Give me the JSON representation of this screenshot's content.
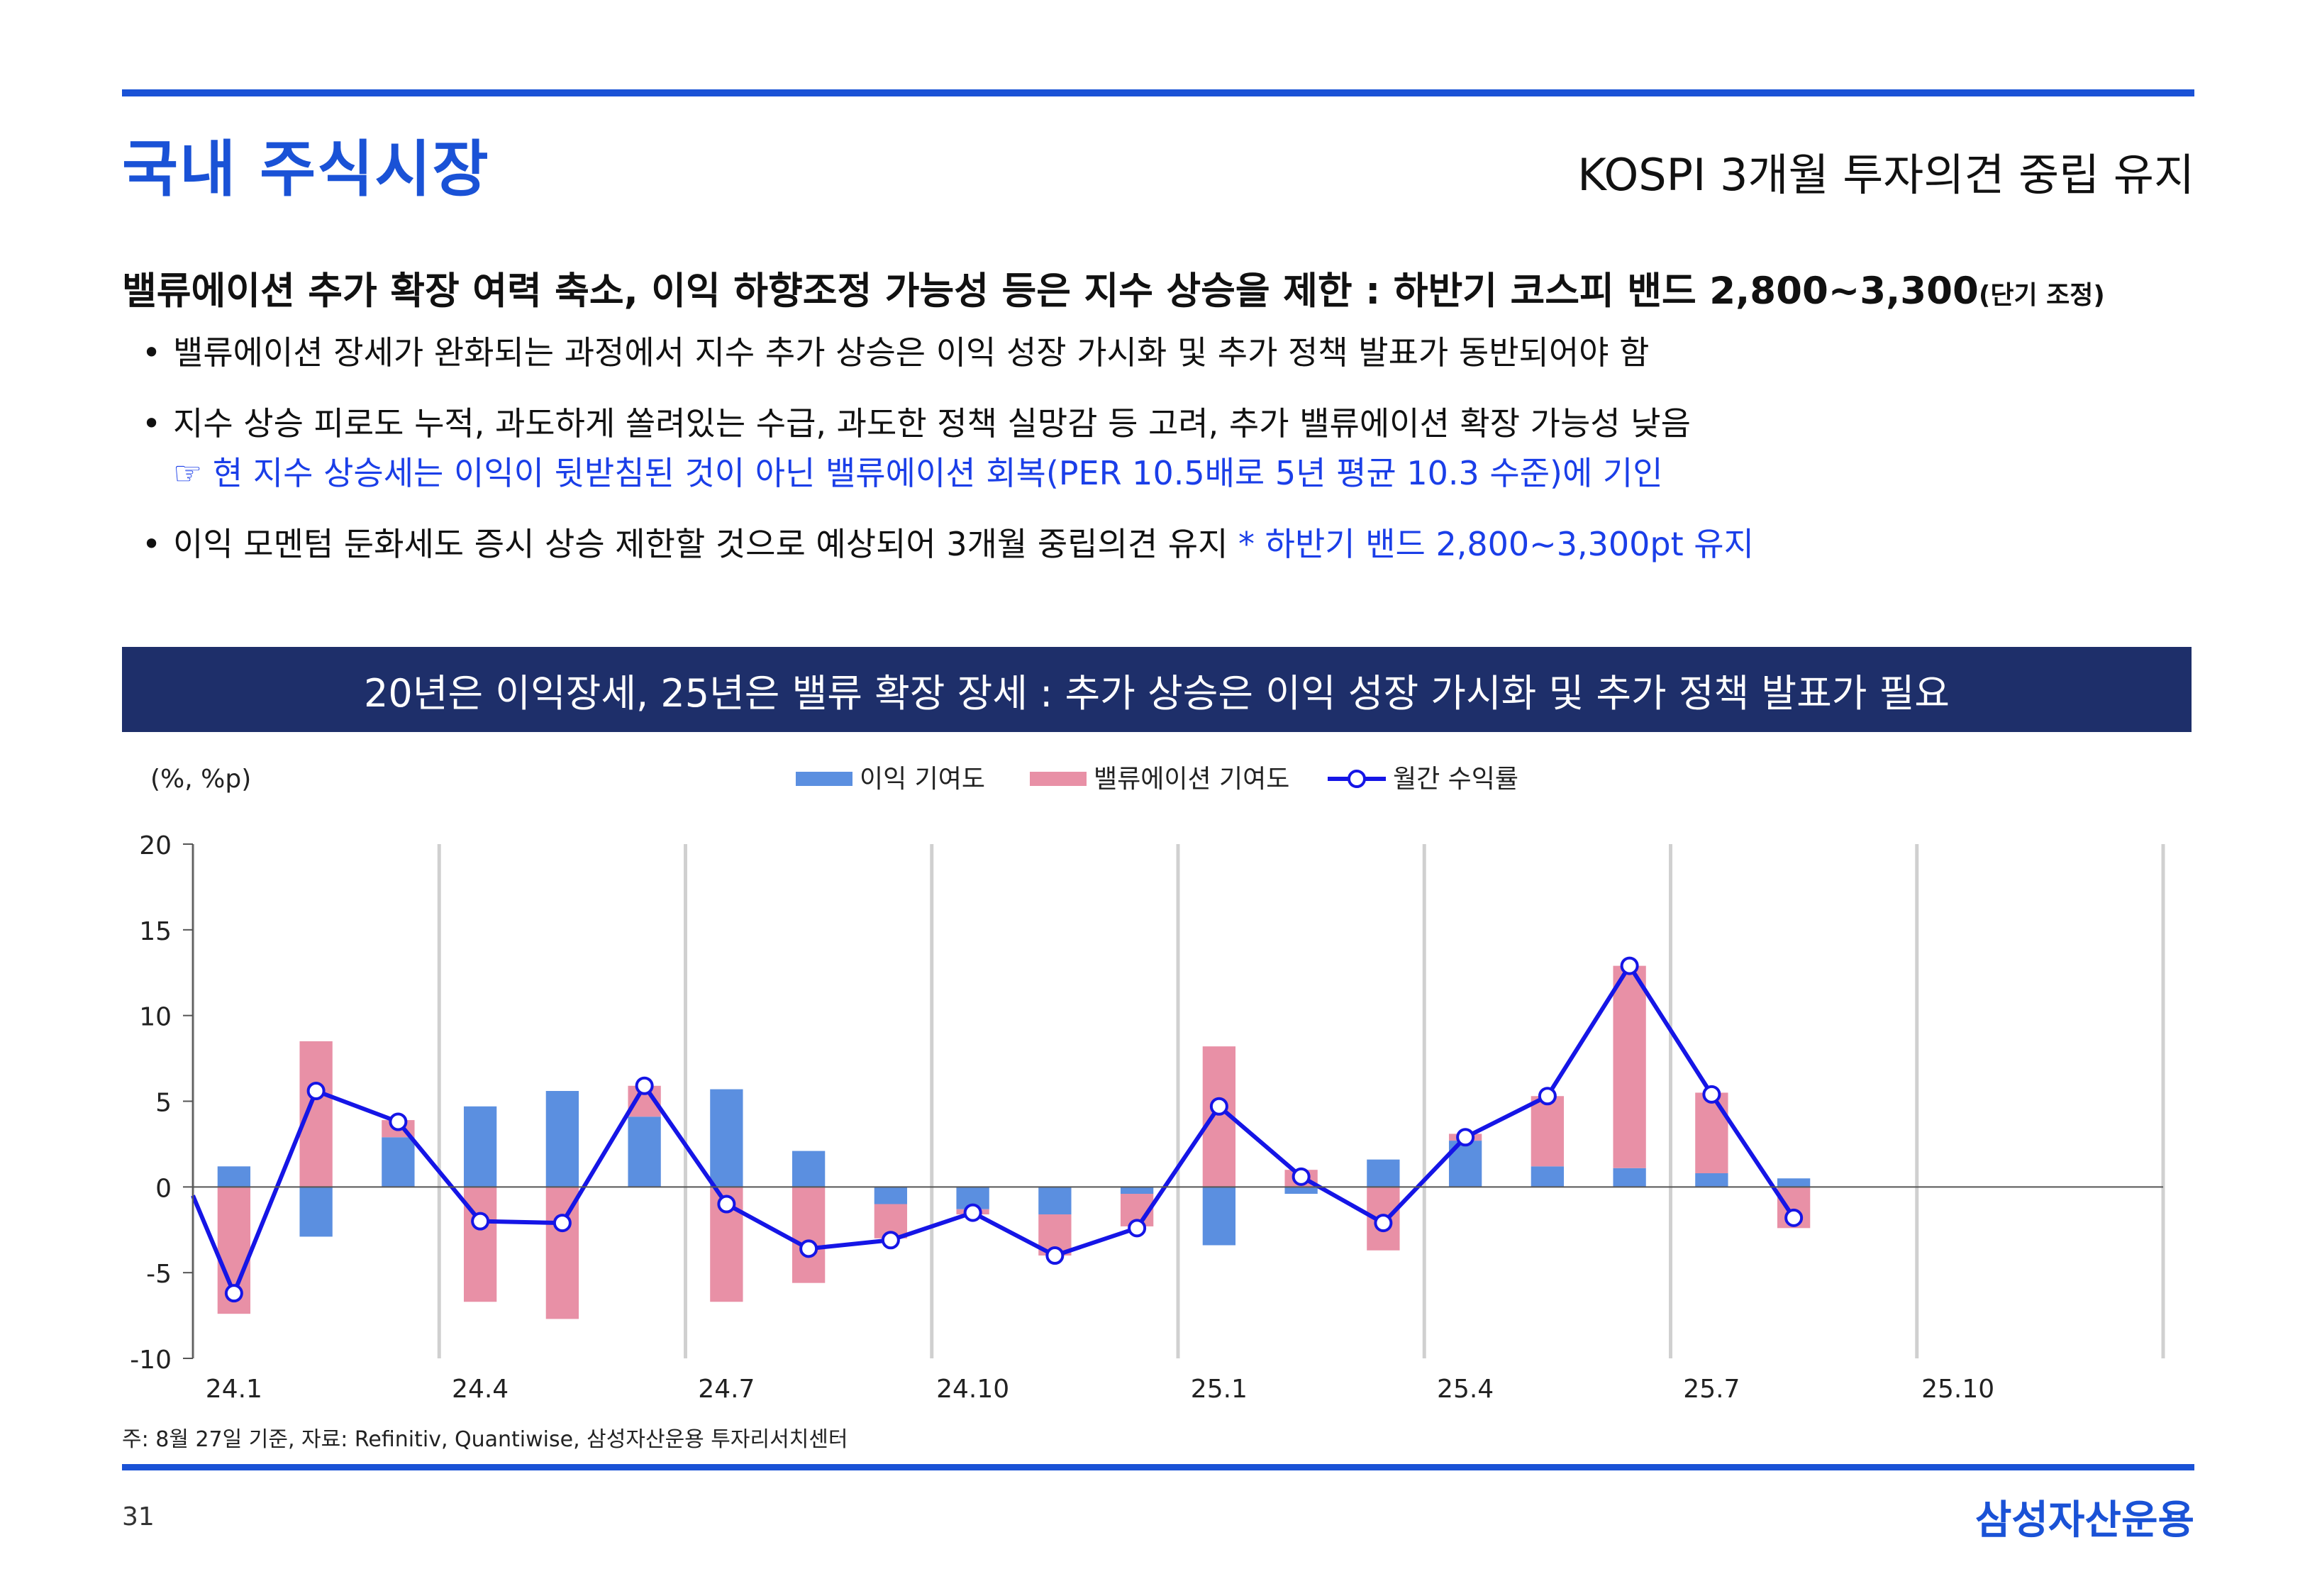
{
  "header": {
    "section_title": "국내 주식시장",
    "subtitle": "KOSPI 3개월 투자의견 중립 유지"
  },
  "headline": {
    "main": "밸류에이션 추가 확장 여력 축소, 이익 하향조정 가능성 등은 지수 상승을 제한 : 하반기 코스피 밴드 2,800~3,300",
    "small": "(단기 조정)"
  },
  "bullets": {
    "b1": "밸류에이션 장세가 완화되는 과정에서 지수 추가 상승은 이익 성장 가시화 및 추가 정책 발표가 동반되어야 함",
    "b2": "지수 상승 피로도 누적, 과도하게 쏠려있는 수급, 과도한 정책 실망감 등 고려, 추가 밸류에이션 확장 가능성 낮음",
    "b2_sub": "☞ 현 지수 상승세는 이익이 뒷받침된 것이 아닌 밸류에이션 회복(PER 10.5배로 5년 평균 10.3 수준)에 기인",
    "b3": "이익 모멘텀 둔화세도 증시 상승 제한할 것으로 예상되어 3개월 중립의견 유지 ",
    "b3_highlight": "* 하반기 밴드 2,800~3,300pt 유지"
  },
  "banner": "20년은 이익장세, 25년은 밸류 확장 장세 : 추가 상승은 이익 성장 가시화 및 추가 정책 발표가 필요",
  "chart_data": {
    "type": "bar",
    "unit_label": "(%, %p)",
    "categories": [
      "24.1",
      "24.2",
      "24.3",
      "24.4",
      "24.5",
      "24.6",
      "24.7",
      "24.8",
      "24.9",
      "24.10",
      "24.11",
      "24.12",
      "25.1",
      "25.2",
      "25.3",
      "25.4",
      "25.5",
      "25.6",
      "25.7",
      "25.8",
      "25.9",
      "25.10",
      "25.11",
      "25.12"
    ],
    "x_tick_labels": [
      "24.1",
      "24.4",
      "24.7",
      "24.10",
      "25.1",
      "25.4",
      "25.7",
      "25.10"
    ],
    "ylim": [
      -10,
      20
    ],
    "yticks": [
      -10,
      -5,
      0,
      5,
      10,
      15,
      20
    ],
    "series": [
      {
        "name": "이익 기여도",
        "type": "bar",
        "color": "#5b8fe0",
        "values": [
          1.2,
          -2.9,
          2.9,
          4.7,
          5.6,
          4.1,
          5.7,
          2.1,
          -1.0,
          -1.3,
          -1.6,
          -0.4,
          -3.4,
          -0.4,
          1.6,
          2.7,
          1.2,
          1.1,
          0.8,
          0.5,
          null,
          null,
          null,
          null
        ]
      },
      {
        "name": "밸류에이션 기여도",
        "type": "bar",
        "color": "#e890a6",
        "values": [
          -7.4,
          8.5,
          1.0,
          -6.7,
          -7.7,
          1.8,
          -6.7,
          -5.6,
          -2.0,
          -0.3,
          -2.4,
          -1.9,
          8.2,
          1.0,
          -3.7,
          0.4,
          4.1,
          11.8,
          4.7,
          -2.4,
          null,
          null,
          null,
          null
        ]
      },
      {
        "name": "월간 수익률",
        "type": "line",
        "color": "#1515e6",
        "values": [
          -6.2,
          5.6,
          3.8,
          -2.0,
          -2.1,
          5.9,
          -1.0,
          -3.6,
          -3.1,
          -1.5,
          -4.0,
          -2.4,
          4.7,
          0.6,
          -2.1,
          2.9,
          5.3,
          12.9,
          5.4,
          -1.8,
          null,
          null,
          null,
          null
        ]
      }
    ],
    "line_start_value": -0.5,
    "legend_position": "top-center",
    "grid": "vertical-quarterly"
  },
  "footnote": "주: 8월 27일 기준, 자료: Refinitiv, Quantiwise, 삼성자산운용 투자리서치센터",
  "footer": {
    "page_number": "31",
    "brand": "삼성자산운용"
  }
}
